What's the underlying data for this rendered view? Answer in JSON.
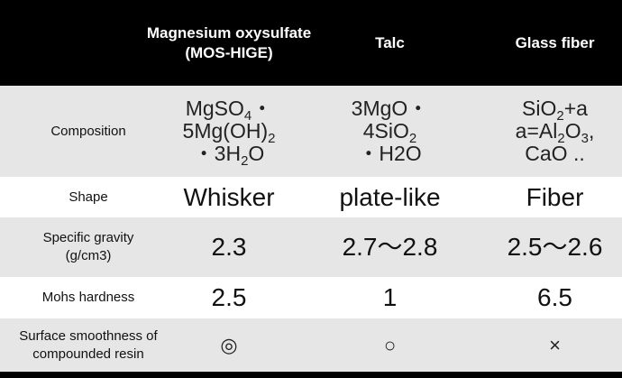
{
  "header": {
    "col_label": "",
    "col_mos_line1": "Magnesium oxysulfate",
    "col_mos_line2": "(MOS-HIGE)",
    "col_talc": "Talc",
    "col_glass": "Glass fiber"
  },
  "rows": {
    "composition": {
      "label": "Composition",
      "mos": {
        "l1_a": "MgSO",
        "l1_sub": "4",
        "l1_b": "・",
        "l2_a": "5Mg(OH)",
        "l2_sub": "2",
        "l3_a": "・3H",
        "l3_sub": "2",
        "l3_b": "O"
      },
      "talc": {
        "l1": "3MgO・",
        "l2_a": "4SiO",
        "l2_sub": "2",
        "l3": "・H2O"
      },
      "glass": {
        "l1_a": "SiO",
        "l1_sub": "2",
        "l1_b": "+a",
        "l2_a": "a=Al",
        "l2_sub1": "2",
        "l2_b": "O",
        "l2_sub2": "3",
        "l2_c": ",",
        "l3": "CaO .."
      }
    },
    "shape": {
      "label": "Shape",
      "mos": "Whisker",
      "talc": "plate-like",
      "glass": "Fiber"
    },
    "gravity": {
      "label_line1": "Specific gravity",
      "label_line2": "(g/cm3)",
      "mos": "2.3",
      "talc": "2.7～2.8",
      "glass": "2.5～2.6"
    },
    "mohs": {
      "label": "Mohs hardness",
      "mos": "2.5",
      "talc": "1",
      "glass": "6.5"
    },
    "surface": {
      "label_line1": "Surface smoothness of",
      "label_line2": "compounded resin",
      "mos": "◎",
      "talc": "○",
      "glass": "×"
    }
  },
  "colors": {
    "header_bg": "#000000",
    "header_text": "#ffffff",
    "band_gray": "#e6e6e6",
    "band_white": "#ffffff"
  }
}
